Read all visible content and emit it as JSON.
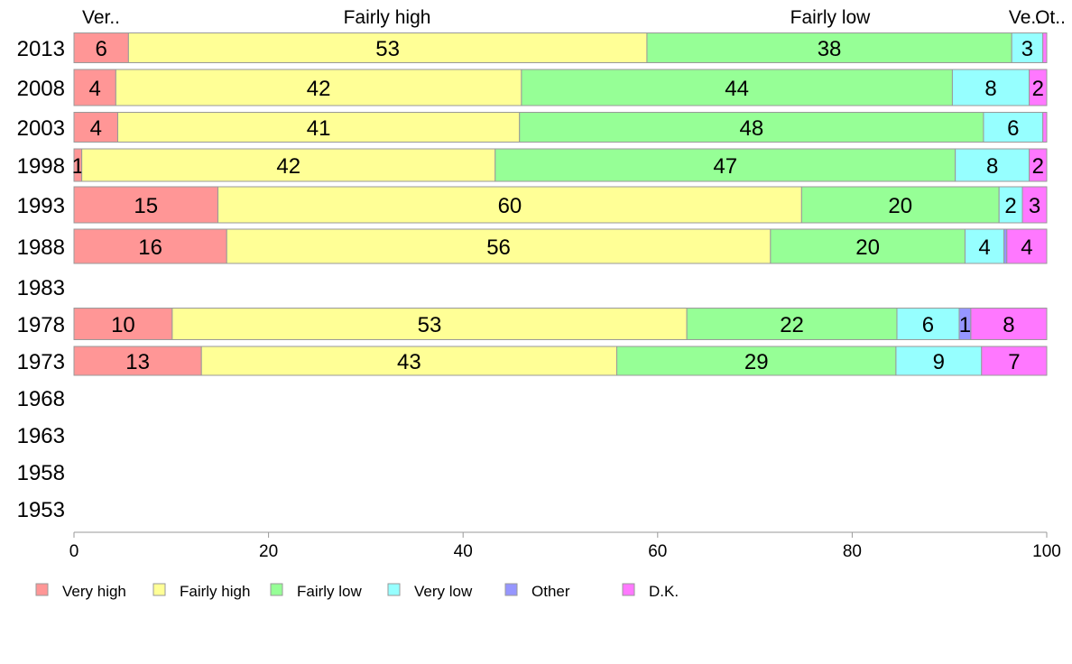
{
  "chart_data": {
    "type": "bar",
    "orientation": "horizontal",
    "stacked": true,
    "title": "",
    "xlabel": "",
    "ylabel": "",
    "xlim": [
      0,
      100
    ],
    "xticks": [
      0,
      20,
      40,
      60,
      80,
      100
    ],
    "grid": false,
    "legend_position": "bottom",
    "categories": [
      "2013",
      "2008",
      "2003",
      "1998",
      "1993",
      "1988",
      "1983",
      "1978",
      "1973",
      "1968",
      "1963",
      "1958",
      "1953"
    ],
    "series": [
      {
        "name": "Very high",
        "color": "#ff9696",
        "values": [
          5.6,
          4.3,
          4.5,
          0.8,
          14.8,
          15.7,
          null,
          10.1,
          13.1,
          null,
          null,
          null,
          null
        ],
        "labels": [
          "6",
          "4",
          "4",
          "1",
          "15",
          "16",
          "",
          "10",
          "13",
          "",
          "",
          "",
          ""
        ]
      },
      {
        "name": "Fairly high",
        "color": "#ffff96",
        "values": [
          53.3,
          41.7,
          41.3,
          42.5,
          60.0,
          55.9,
          null,
          52.9,
          42.7,
          null,
          null,
          null,
          null
        ],
        "labels": [
          "53",
          "42",
          "41",
          "42",
          "60",
          "56",
          "",
          "53",
          "43",
          "",
          "",
          "",
          ""
        ]
      },
      {
        "name": "Fairly low",
        "color": "#96ff96",
        "values": [
          37.5,
          44.3,
          47.7,
          47.3,
          20.3,
          20.0,
          null,
          21.6,
          28.7,
          null,
          null,
          null,
          null
        ],
        "labels": [
          "38",
          "44",
          "48",
          "47",
          "20",
          "20",
          "",
          "22",
          "29",
          "",
          "",
          "",
          ""
        ]
      },
      {
        "name": "Very low",
        "color": "#96ffff",
        "values": [
          3.2,
          7.9,
          6.1,
          7.6,
          2.4,
          4.0,
          null,
          6.4,
          8.8,
          null,
          null,
          null,
          null
        ],
        "labels": [
          "3",
          "8",
          "6",
          "8",
          "2",
          "4",
          "",
          "6",
          "9",
          "",
          "",
          "",
          ""
        ]
      },
      {
        "name": "Other",
        "color": "#9696ff",
        "values": [
          0,
          0,
          0,
          0,
          0,
          0.3,
          null,
          1.2,
          0,
          null,
          null,
          null,
          null
        ],
        "labels": [
          "",
          "",
          "",
          "",
          "",
          "",
          "",
          "1",
          "",
          "",
          "",
          "",
          ""
        ]
      },
      {
        "name": "D.K.",
        "color": "#ff78ff",
        "values": [
          0.4,
          1.8,
          0.4,
          1.8,
          2.5,
          4.1,
          null,
          7.8,
          6.7,
          null,
          null,
          null,
          null
        ],
        "labels": [
          "",
          "2",
          "",
          "2",
          "3",
          "4",
          "",
          "8",
          "7",
          "",
          "",
          "",
          ""
        ]
      }
    ],
    "top_labels": [
      "Ver..",
      "Fairly high",
      "Fairly low",
      "Ve..",
      "Ot.."
    ]
  }
}
